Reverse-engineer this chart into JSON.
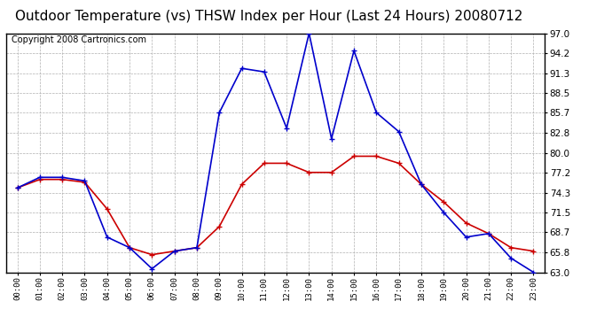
{
  "title": "Outdoor Temperature (vs) THSW Index per Hour (Last 24 Hours) 20080712",
  "copyright": "Copyright 2008 Cartronics.com",
  "hours": [
    "00:00",
    "01:00",
    "02:00",
    "03:00",
    "04:00",
    "05:00",
    "06:00",
    "07:00",
    "08:00",
    "09:00",
    "10:00",
    "11:00",
    "12:00",
    "13:00",
    "14:00",
    "15:00",
    "16:00",
    "17:00",
    "18:00",
    "19:00",
    "20:00",
    "21:00",
    "22:00",
    "23:00"
  ],
  "temp_red": [
    75.0,
    76.2,
    76.2,
    75.8,
    72.0,
    66.5,
    65.5,
    66.0,
    66.5,
    69.5,
    75.5,
    78.5,
    78.5,
    77.2,
    77.2,
    79.5,
    79.5,
    78.5,
    75.5,
    73.0,
    70.0,
    68.5,
    66.5,
    66.0
  ],
  "thsw_blue": [
    75.0,
    76.5,
    76.5,
    76.0,
    68.0,
    66.5,
    63.5,
    66.0,
    66.5,
    85.7,
    92.0,
    91.5,
    83.5,
    97.0,
    82.0,
    94.5,
    85.7,
    83.0,
    75.5,
    71.5,
    68.0,
    68.5,
    65.0,
    63.0
  ],
  "ylim": [
    63.0,
    97.0
  ],
  "yticks": [
    63.0,
    65.8,
    68.7,
    71.5,
    74.3,
    77.2,
    80.0,
    82.8,
    85.7,
    88.5,
    91.3,
    94.2,
    97.0
  ],
  "temp_color": "#cc0000",
  "thsw_color": "#0000cc",
  "bg_color": "#ffffff",
  "plot_bg_color": "#ffffff",
  "grid_color": "#b0b0b0",
  "title_fontsize": 11,
  "copyright_fontsize": 7
}
